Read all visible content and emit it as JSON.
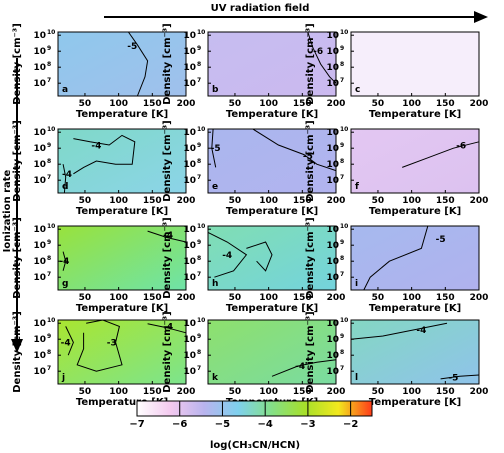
{
  "chart_data": {
    "type": "heatmap",
    "top_label": "UV radiation field",
    "left_label": "Ionization rate",
    "xlabel": "Temperature [K]",
    "ylabel": "Density [cm⁻³]",
    "x_ticks": [
      "50",
      "100",
      "150",
      "200"
    ],
    "x_range": [
      10,
      200
    ],
    "y_ticks": [
      {
        "base": "10",
        "exp": "7"
      },
      {
        "base": "10",
        "exp": "8"
      },
      {
        "base": "10",
        "exp": "9"
      },
      {
        "base": "10",
        "exp": "10"
      }
    ],
    "y_range_log": [
      6.2,
      10.2
    ],
    "colorbar": {
      "range": [
        -7,
        -1.5
      ],
      "ticks": [
        "−7",
        "−6",
        "−5",
        "−4",
        "−3",
        "−2"
      ],
      "tick_values": [
        -7,
        -6,
        -5,
        -4,
        -3,
        -2
      ],
      "label": "log(CH₃CN/HCN)",
      "colors": [
        "#ffffff",
        "#f3c9ef",
        "#b9b4ee",
        "#7fd0ee",
        "#84e089",
        "#a6e02a",
        "#f2e81e",
        "#ff3b1a"
      ]
    },
    "panels": [
      {
        "letter": "a",
        "base": -4.7,
        "contours": [
          "-5"
        ],
        "bg": [
          "#8fc8ec",
          "#a0c0ec"
        ]
      },
      {
        "letter": "b",
        "base": -5.7,
        "contours": [
          "-6"
        ],
        "bg": [
          "#c6bdf0",
          "#cbb9ef"
        ]
      },
      {
        "letter": "c",
        "base": -6.8,
        "contours": [],
        "bg": [
          "#f6eefb",
          "#f6eefb"
        ]
      },
      {
        "letter": "d",
        "base": -4.2,
        "contours": [
          "-4",
          "-4"
        ],
        "bg": [
          "#7fd9c8",
          "#8cd4e8"
        ]
      },
      {
        "letter": "e",
        "base": -5.0,
        "contours": [
          "-5",
          "-5"
        ],
        "bg": [
          "#aab6ee",
          "#b2b4ef"
        ]
      },
      {
        "letter": "f",
        "base": -5.9,
        "contours": [
          "-6"
        ],
        "bg": [
          "#e3c7f2",
          "#dcc2f0"
        ]
      },
      {
        "letter": "g",
        "base": -3.6,
        "contours": [
          "-4",
          "-4"
        ],
        "bg": [
          "#98e23c",
          "#6fe3a8"
        ]
      },
      {
        "letter": "h",
        "base": -4.2,
        "contours": [
          "-4"
        ],
        "bg": [
          "#80deb3",
          "#74d3dd"
        ]
      },
      {
        "letter": "i",
        "base": -5.1,
        "contours": [
          "-5"
        ],
        "bg": [
          "#a6b9ee",
          "#b0b2ee"
        ]
      },
      {
        "letter": "j",
        "base": -3.3,
        "contours": [
          "-4",
          "-3",
          "-4"
        ],
        "bg": [
          "#a9e530",
          "#7de48d"
        ]
      },
      {
        "letter": "k",
        "base": -3.8,
        "contours": [
          "-4"
        ],
        "bg": [
          "#8ee06d",
          "#7adba1"
        ]
      },
      {
        "letter": "l",
        "base": -4.6,
        "contours": [
          "-4",
          "-5"
        ],
        "bg": [
          "#84d7c3",
          "#8fc3ea"
        ]
      }
    ]
  }
}
